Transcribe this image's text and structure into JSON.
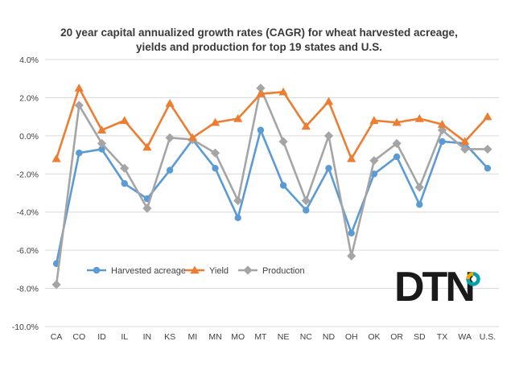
{
  "chart_data": {
    "type": "line",
    "title_lines": [
      "20 year capital annualized growth rates (CAGR) for wheat harvested acreage,",
      "yields and production for top 19 states and U.S."
    ],
    "xlabel": "",
    "ylabel": "",
    "categories": [
      "CA",
      "CO",
      "ID",
      "IL",
      "IN",
      "KS",
      "MI",
      "MN",
      "MO",
      "MT",
      "NE",
      "NC",
      "ND",
      "OH",
      "OK",
      "OR",
      "SD",
      "TX",
      "WA",
      "U.S."
    ],
    "ylim": [
      -10,
      4
    ],
    "y_ticks": [
      4,
      2,
      0,
      -2,
      -4,
      -6,
      -8,
      -10
    ],
    "y_tick_labels": [
      "4.0%",
      "2.0%",
      "0.0%",
      "-2.0%",
      "-4.0%",
      "-6.0%",
      "-8.0%",
      "-10.0%"
    ],
    "grid": "horizontal",
    "legend_position": "bottom-left-inside",
    "series": [
      {
        "name": "Harvested acreage",
        "color": "#5B9BD5",
        "marker": "circle",
        "values": [
          -6.7,
          -0.9,
          -0.7,
          -2.5,
          -3.3,
          -1.8,
          -0.2,
          -1.7,
          -4.3,
          0.3,
          -2.6,
          -3.9,
          -1.7,
          -5.1,
          -2.0,
          -1.1,
          -3.6,
          -0.3,
          -0.4,
          -1.7
        ]
      },
      {
        "name": "Yield",
        "color": "#ED7D31",
        "marker": "triangle",
        "values": [
          -1.2,
          2.5,
          0.3,
          0.8,
          -0.6,
          1.7,
          -0.1,
          0.7,
          0.9,
          2.2,
          2.3,
          0.5,
          1.8,
          -1.2,
          0.8,
          0.7,
          0.9,
          0.6,
          -0.3,
          1.0
        ]
      },
      {
        "name": "Production",
        "color": "#A5A5A5",
        "marker": "diamond",
        "values": [
          -7.8,
          1.6,
          -0.4,
          -1.7,
          -3.8,
          -0.1,
          -0.2,
          -0.9,
          -3.4,
          2.5,
          -0.3,
          -3.4,
          0.0,
          -6.3,
          -1.3,
          -0.4,
          -2.7,
          0.3,
          -0.7,
          -0.7
        ]
      }
    ]
  },
  "logo": {
    "text": "DTN",
    "ring_colors": [
      "#F2A900",
      "#00A3AD"
    ]
  }
}
